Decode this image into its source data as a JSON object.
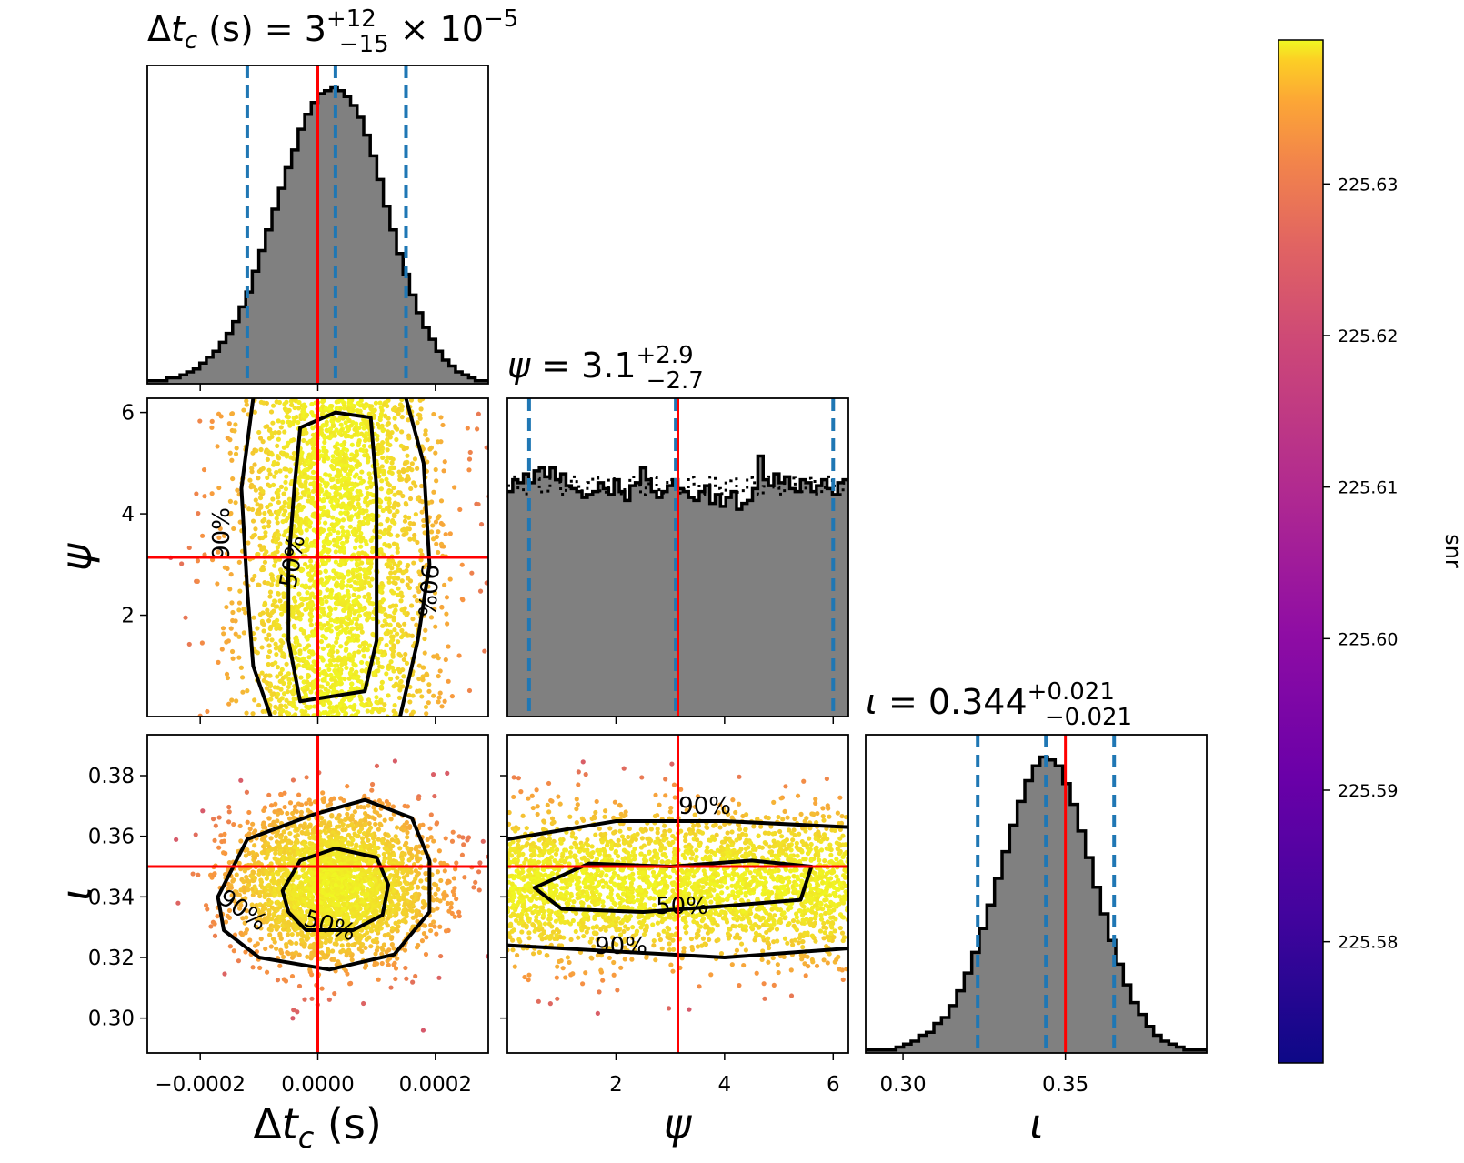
{
  "chart_data": {
    "type": "corner",
    "colorbar": {
      "label": "snr",
      "ticks": [
        "225.58",
        "225.59",
        "225.60",
        "225.61",
        "225.62",
        "225.63"
      ],
      "range": [
        225.572,
        225.6395
      ],
      "colormap": "plasma"
    },
    "parameters": [
      {
        "key": "dtc",
        "label": "Δt_c (s)",
        "title": "Δt_c (s) = 3^{+12}_{-15} × 10^{-5}",
        "range": [
          -0.00029,
          0.00029
        ],
        "ticks": [
          "−0.0002",
          "0.0000",
          "0.0002"
        ],
        "tick_values": [
          -0.0002,
          0.0,
          0.0002
        ],
        "injection": 0.0,
        "median": 3e-05,
        "credible_interval": [
          -0.00012,
          0.00015
        ],
        "histogram": [
          0.01,
          0.01,
          0.01,
          0.02,
          0.02,
          0.03,
          0.04,
          0.05,
          0.07,
          0.09,
          0.11,
          0.14,
          0.17,
          0.21,
          0.26,
          0.31,
          0.38,
          0.45,
          0.52,
          0.59,
          0.66,
          0.73,
          0.79,
          0.86,
          0.91,
          0.95,
          0.98,
          0.99,
          1.0,
          0.99,
          0.97,
          0.94,
          0.9,
          0.84,
          0.77,
          0.69,
          0.6,
          0.52,
          0.44,
          0.37,
          0.3,
          0.24,
          0.19,
          0.15,
          0.11,
          0.08,
          0.06,
          0.04,
          0.03,
          0.02,
          0.01,
          0.01
        ]
      },
      {
        "key": "psi",
        "label": "ψ",
        "title": "ψ = 3.1^{+2.9}_{-2.7}",
        "range": [
          0.0,
          6.28
        ],
        "ticks": [
          "2",
          "4",
          "6"
        ],
        "tick_values": [
          2,
          4,
          6
        ],
        "y_ticks": [
          "2",
          "4",
          "6"
        ],
        "injection": 3.14,
        "median": 3.1,
        "credible_interval": [
          0.4,
          6.0
        ],
        "histogram": [
          0.76,
          0.8,
          0.79,
          0.82,
          0.79,
          0.83,
          0.84,
          0.81,
          0.84,
          0.8,
          0.82,
          0.78,
          0.77,
          0.76,
          0.74,
          0.75,
          0.76,
          0.79,
          0.77,
          0.75,
          0.8,
          0.76,
          0.73,
          0.78,
          0.79,
          0.84,
          0.8,
          0.76,
          0.74,
          0.76,
          0.78,
          0.8,
          0.77,
          0.76,
          0.74,
          0.73,
          0.76,
          0.78,
          0.72,
          0.75,
          0.71,
          0.74,
          0.76,
          0.7,
          0.72,
          0.73,
          0.77,
          0.88,
          0.8,
          0.78,
          0.82,
          0.79,
          0.81,
          0.77,
          0.76,
          0.8,
          0.79,
          0.76,
          0.78,
          0.8,
          0.77,
          0.75,
          0.79,
          0.8
        ]
      },
      {
        "key": "iota",
        "label": "ι",
        "title": "ι = 0.344^{+0.021}_{-0.021}",
        "range": [
          0.2885,
          0.3935
        ],
        "ticks": [
          "0.30",
          "0.35"
        ],
        "tick_values": [
          0.3,
          0.35
        ],
        "y_ticks": [
          "0.30",
          "0.32",
          "0.34",
          "0.36",
          "0.38"
        ],
        "injection": 0.35,
        "median": 0.344,
        "credible_interval": [
          0.323,
          0.365
        ],
        "histogram": [
          0.01,
          0.01,
          0.01,
          0.01,
          0.02,
          0.03,
          0.04,
          0.06,
          0.07,
          0.1,
          0.12,
          0.16,
          0.21,
          0.27,
          0.34,
          0.42,
          0.5,
          0.59,
          0.68,
          0.77,
          0.85,
          0.92,
          0.97,
          1.0,
          0.99,
          0.97,
          0.91,
          0.84,
          0.75,
          0.66,
          0.56,
          0.47,
          0.38,
          0.3,
          0.23,
          0.17,
          0.13,
          0.09,
          0.06,
          0.04,
          0.03,
          0.02,
          0.01,
          0.01,
          0.01
        ]
      }
    ],
    "contour_levels": [
      "50%",
      "90%"
    ],
    "panels_2d": [
      {
        "x": "dtc",
        "y": "psi",
        "contour_50": [
          [
            -3e-05,
            0.3
          ],
          [
            8e-05,
            0.5
          ],
          [
            0.0001,
            1.5
          ],
          [
            0.0001,
            4.5
          ],
          [
            9e-05,
            5.9
          ],
          [
            3e-05,
            6.0
          ],
          [
            -3e-05,
            5.7
          ],
          [
            -4e-05,
            4.5
          ],
          [
            -5e-05,
            3.0
          ],
          [
            -5e-05,
            1.5
          ]
        ],
        "contour_90": [
          [
            -8e-05,
            0.0
          ],
          [
            -0.00011,
            1.0
          ],
          [
            -0.00012,
            2.5
          ],
          [
            -0.00013,
            4.5
          ],
          [
            -0.00011,
            6.28
          ]
        ],
        "contour_90_right": [
          [
            0.00014,
            0.0
          ],
          [
            0.00017,
            1.5
          ],
          [
            0.00019,
            3.0
          ],
          [
            0.00018,
            5.0
          ],
          [
            0.00015,
            6.28
          ]
        ]
      },
      {
        "x": "dtc",
        "y": "iota",
        "contour_50": [
          [
            -6e-05,
            0.342
          ],
          [
            -3e-05,
            0.352
          ],
          [
            3e-05,
            0.356
          ],
          [
            0.0001,
            0.353
          ],
          [
            0.00012,
            0.344
          ],
          [
            0.00011,
            0.334
          ],
          [
            6e-05,
            0.329
          ],
          [
            -2e-05,
            0.329
          ],
          [
            -5e-05,
            0.335
          ]
        ],
        "contour_90": [
          [
            -0.00017,
            0.34
          ],
          [
            -0.00012,
            0.359
          ],
          [
            -1e-05,
            0.367
          ],
          [
            8e-05,
            0.372
          ],
          [
            0.00016,
            0.366
          ],
          [
            0.00019,
            0.352
          ],
          [
            0.00019,
            0.335
          ],
          [
            0.00013,
            0.321
          ],
          [
            2e-05,
            0.316
          ],
          [
            -0.0001,
            0.32
          ],
          [
            -0.00016,
            0.329
          ]
        ]
      },
      {
        "x": "psi",
        "y": "iota",
        "contour_50": [
          [
            0.5,
            0.343
          ],
          [
            1.5,
            0.351
          ],
          [
            3.0,
            0.35
          ],
          [
            4.5,
            0.352
          ],
          [
            5.6,
            0.35
          ],
          [
            5.4,
            0.339
          ],
          [
            4.0,
            0.337
          ],
          [
            2.5,
            0.335
          ],
          [
            1.0,
            0.336
          ]
        ],
        "contour_90": [
          [
            0.0,
            0.359
          ],
          [
            2.0,
            0.365
          ],
          [
            4.0,
            0.365
          ],
          [
            6.28,
            0.363
          ]
        ],
        "contour_90_low": [
          [
            0.0,
            0.324
          ],
          [
            2.0,
            0.322
          ],
          [
            4.0,
            0.32
          ],
          [
            6.28,
            0.323
          ]
        ]
      }
    ]
  }
}
